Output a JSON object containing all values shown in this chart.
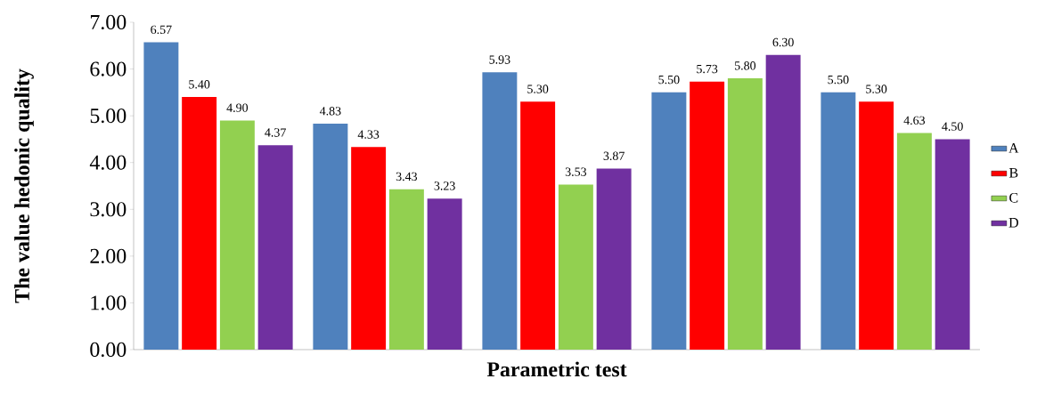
{
  "chart_data": {
    "type": "bar",
    "xlabel": "Parametric test",
    "ylabel": "The value hedonic quality",
    "categories": [
      null,
      null,
      null,
      null,
      null
    ],
    "series": [
      {
        "name": "A",
        "color": "#4f81bd",
        "values": [
          6.57,
          4.83,
          5.93,
          5.5,
          5.5
        ],
        "value_labels": [
          "6.57",
          "4.83",
          "5.93",
          "5.50",
          "5.50"
        ]
      },
      {
        "name": "B",
        "color": "#ff0000",
        "values": [
          5.4,
          4.33,
          5.3,
          5.73,
          5.3
        ],
        "value_labels": [
          "5.40",
          "4.33",
          "5.30",
          "5.73",
          "5.30"
        ]
      },
      {
        "name": "C",
        "color": "#92d050",
        "values": [
          4.9,
          3.43,
          3.53,
          5.8,
          4.63
        ],
        "value_labels": [
          "4.90",
          "3.43",
          "3.53",
          "5.80",
          "4.63"
        ]
      },
      {
        "name": "D",
        "color": "#7030a0",
        "values": [
          4.37,
          3.23,
          3.87,
          6.3,
          4.5
        ],
        "value_labels": [
          "4.37",
          "3.23",
          "3.87",
          "6.30",
          "4.50"
        ]
      }
    ],
    "ylim": [
      0,
      7
    ],
    "yticks": [
      {
        "value": 0,
        "label": "0.00"
      },
      {
        "value": 1,
        "label": "1.00"
      },
      {
        "value": 2,
        "label": "2.00"
      },
      {
        "value": 3,
        "label": "3.00"
      },
      {
        "value": 4,
        "label": "4.00"
      },
      {
        "value": 5,
        "label": "5.00"
      },
      {
        "value": 6,
        "label": "6.00"
      },
      {
        "value": 7,
        "label": "7.00"
      }
    ],
    "grid": false,
    "legend": "right"
  }
}
